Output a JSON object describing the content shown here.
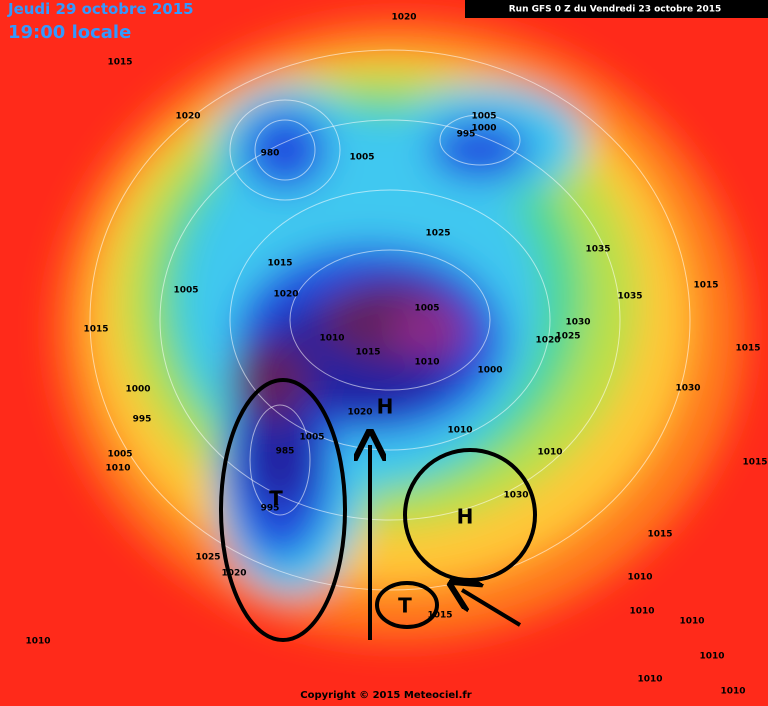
{
  "header": {
    "date": "Jeudi 29 octobre 2015",
    "time": "19:00 locale",
    "run": "Run GFS 0 Z du Vendredi 23 octobre 2015"
  },
  "footer": {
    "copyright": "Copyright © 2015 Meteociel.fr"
  },
  "isobar_labels": [
    "1020",
    "1015",
    "1020",
    "980",
    "1005",
    "1005",
    "1000",
    "995",
    "1025",
    "1035",
    "1035",
    "1015",
    "1015",
    "1020",
    "1005",
    "1015",
    "1010",
    "1015",
    "1005",
    "1010",
    "1020",
    "1025",
    "1030",
    "1015",
    "1030",
    "1000",
    "1000",
    "995",
    "1020",
    "1005",
    "1010",
    "1010",
    "1005",
    "1010",
    "1015",
    "1030",
    "1025",
    "1020",
    "1015",
    "1010",
    "1010",
    "1010",
    "1010",
    "1010",
    "1010",
    "1010",
    "1015",
    "985",
    "995"
  ],
  "pressure_centers": [
    "H",
    "H",
    "T",
    "T"
  ]
}
